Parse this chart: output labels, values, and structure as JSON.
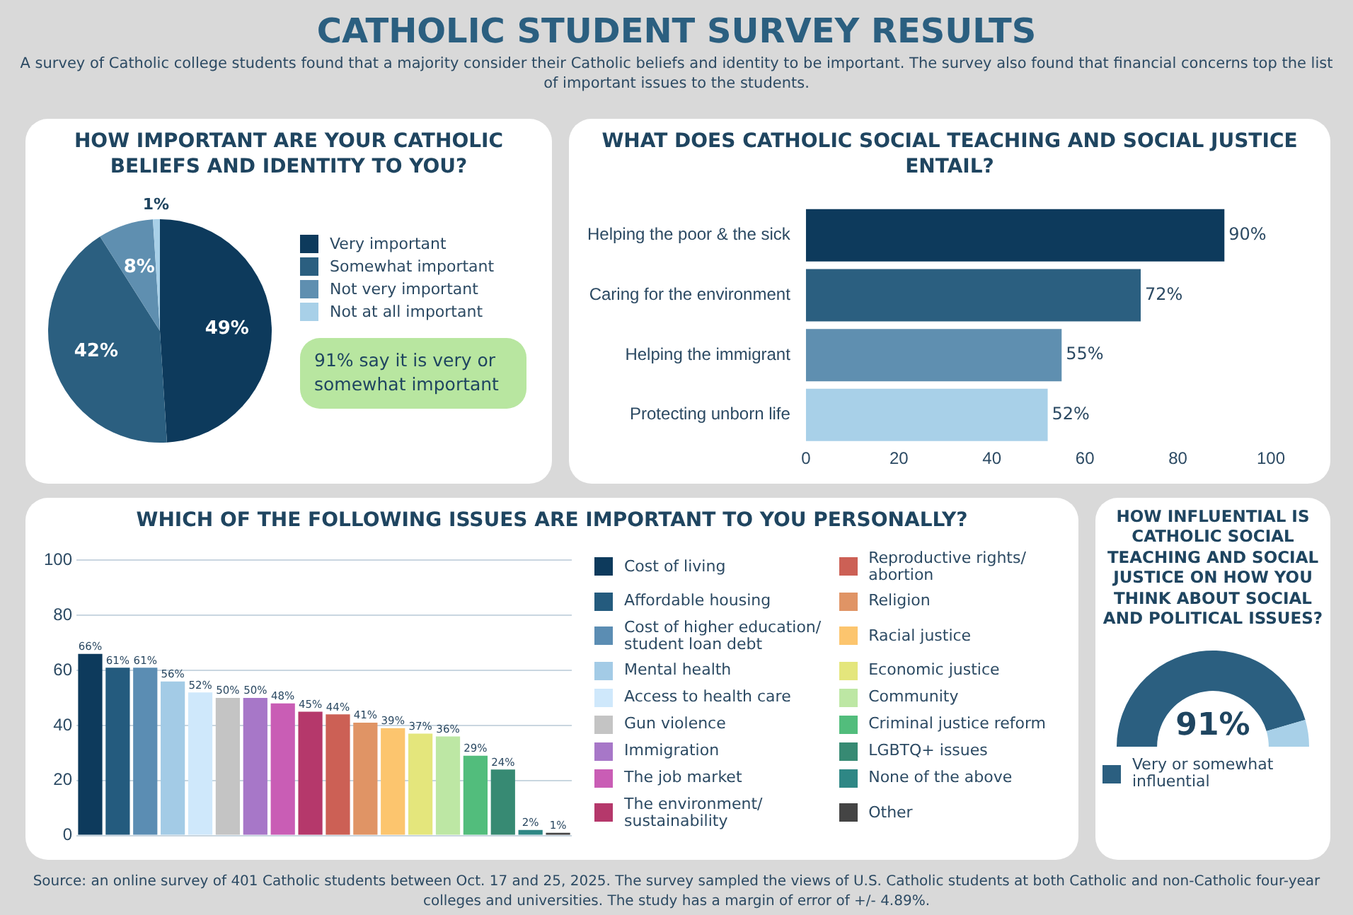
{
  "chart_data": [
    {
      "type": "other",
      "title": "CATHOLIC STUDENT SURVEY RESULTS",
      "subtitle": "A survey of Catholic college students found that a majority consider their Catholic beliefs and identity to be important. The survey also found that financial concerns top the list of important issues to the students.",
      "annotations": [
        "Source: an online survey of 401 Catholic students between Oct. 17 and 25, 2025. The survey sampled the views of U.S. Catholic students at both Catholic and non-Catholic four-year colleges and universities. The study has a margin of error of +/- 4.89%."
      ]
    },
    {
      "type": "pie",
      "title": "HOW IMPORTANT ARE YOUR CATHOLIC BELIEFS AND IDENTITY TO YOU?",
      "categories": [
        "Very important",
        "Somewhat important",
        "Not very important",
        "Not at all important"
      ],
      "values": [
        49,
        42,
        8,
        1
      ],
      "colors": [
        "#0d3a5c",
        "#2b5f80",
        "#5f8fb0",
        "#a8d0e8"
      ],
      "value_labels": [
        "49%",
        "42%",
        "8%",
        "1%"
      ],
      "legend": "right",
      "annotations": [
        "91% say it is very or somewhat important"
      ]
    },
    {
      "type": "bar",
      "orientation": "horizontal",
      "title": "WHAT DOES CATHOLIC SOCIAL TEACHING AND SOCIAL JUSTICE ENTAIL?",
      "categories": [
        "Helping the poor & the sick",
        "Caring for the environment",
        "Helping the immigrant",
        "Protecting unborn life"
      ],
      "values": [
        90,
        72,
        55,
        52
      ],
      "colors": [
        "#0d3a5c",
        "#2b5f80",
        "#5f8fb0",
        "#a8d0e8"
      ],
      "value_labels": [
        "90%",
        "72%",
        "55%",
        "52%"
      ],
      "xlim": [
        0,
        100
      ],
      "xticks": [
        0,
        20,
        40,
        60,
        80,
        100
      ]
    },
    {
      "type": "bar",
      "title": "WHICH OF THE FOLLOWING ISSUES ARE IMPORTANT TO YOU PERSONALLY?",
      "categories": [
        null
      ],
      "series": [
        {
          "name": "Cost of living",
          "color": "#0d3a5c",
          "values": [
            66
          ],
          "value_labels": [
            "66%"
          ]
        },
        {
          "name": "Affordable housing",
          "color": "#245b7e",
          "values": [
            61
          ],
          "value_labels": [
            "61%"
          ]
        },
        {
          "name": "Cost of higher education/ student loan debt",
          "color": "#5b8db3",
          "values": [
            61
          ],
          "value_labels": [
            "61%"
          ]
        },
        {
          "name": "Mental health",
          "color": "#a3cbe6",
          "values": [
            56
          ],
          "value_labels": [
            "56%"
          ]
        },
        {
          "name": "Access to health care",
          "color": "#cfe8fb",
          "values": [
            52
          ],
          "value_labels": [
            "52%"
          ]
        },
        {
          "name": "Gun violence",
          "color": "#c4c4c4",
          "values": [
            50
          ],
          "value_labels": [
            "50%"
          ]
        },
        {
          "name": "Immigration",
          "color": "#a777c8",
          "values": [
            50
          ],
          "value_labels": [
            "50%"
          ]
        },
        {
          "name": "The job market",
          "color": "#c95db5",
          "values": [
            48
          ],
          "value_labels": [
            "48%"
          ]
        },
        {
          "name": "The environment/ sustainability",
          "color": "#b5386b",
          "values": [
            45
          ],
          "value_labels": [
            "45%"
          ]
        },
        {
          "name": "Reproductive rights/ abortion",
          "color": "#cc6055",
          "values": [
            44
          ],
          "value_labels": [
            "44%"
          ]
        },
        {
          "name": "Religion",
          "color": "#e09465",
          "values": [
            41
          ],
          "value_labels": [
            "41%"
          ]
        },
        {
          "name": "Racial justice",
          "color": "#fcc56e",
          "values": [
            39
          ],
          "value_labels": [
            "39%"
          ]
        },
        {
          "name": "Economic justice",
          "color": "#e4e67c",
          "values": [
            37
          ],
          "value_labels": [
            "37%"
          ]
        },
        {
          "name": "Community",
          "color": "#bde7a4",
          "values": [
            36
          ],
          "value_labels": [
            "36%"
          ]
        },
        {
          "name": "Criminal justice reform",
          "color": "#52bd7c",
          "values": [
            29
          ],
          "value_labels": [
            "29%"
          ]
        },
        {
          "name": "LGBTQ+ issues",
          "color": "#378a73",
          "values": [
            24
          ],
          "value_labels": [
            "24%"
          ]
        },
        {
          "name": "None of the above",
          "color": "#2e8785",
          "values": [
            2
          ],
          "value_labels": [
            "2%"
          ]
        },
        {
          "name": "Other",
          "color": "#444444",
          "values": [
            1
          ],
          "value_labels": [
            "1%"
          ]
        }
      ],
      "ylim": [
        0,
        100
      ],
      "yticks": [
        0,
        20,
        40,
        60,
        80,
        100
      ],
      "grid": "y",
      "tick_labels": "y",
      "legend": "right"
    },
    {
      "type": "donut",
      "title": "HOW INFLUENTIAL IS CATHOLIC SOCIAL TEACHING AND SOCIAL JUSTICE ON HOW YOU THINK ABOUT SOCIAL AND POLITICAL ISSUES?",
      "categories": [
        "Very or somewhat influential",
        null
      ],
      "values": [
        91,
        9
      ],
      "colors": [
        "#2b5f80",
        "#a8d0e8"
      ],
      "value_labels": [
        "91%",
        null
      ],
      "legend": "bottom"
    }
  ]
}
